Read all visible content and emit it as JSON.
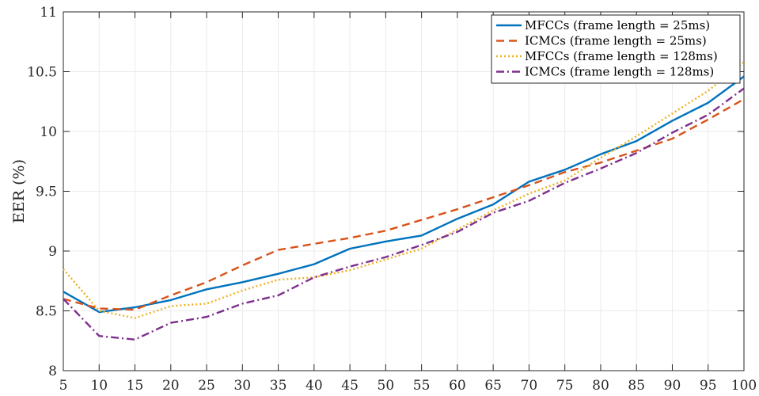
{
  "chart_data": {
    "type": "line",
    "title": "",
    "xlabel": "",
    "ylabel": "EER (%)",
    "x": [
      5,
      10,
      15,
      20,
      25,
      30,
      35,
      40,
      45,
      50,
      55,
      60,
      65,
      70,
      75,
      80,
      85,
      90,
      95,
      100
    ],
    "x_tick_labels": [
      "5",
      "10",
      "15",
      "20",
      "25",
      "30",
      "35",
      "40",
      "45",
      "50",
      "55",
      "60",
      "65",
      "70",
      "75",
      "80",
      "85",
      "90",
      "95",
      "100"
    ],
    "xlim": [
      5,
      100
    ],
    "ylim": [
      8,
      11
    ],
    "y_ticks": [
      8,
      8.5,
      9,
      9.5,
      10,
      10.5,
      11
    ],
    "y_tick_labels": [
      "8",
      "8.5",
      "9",
      "9.5",
      "10",
      "10.5",
      "11"
    ],
    "grid": true,
    "legend_position": "top-right",
    "series": [
      {
        "name": "MFCCs (frame length = 25ms)",
        "color": "#0072BD",
        "dash": "solid",
        "values": [
          8.66,
          8.49,
          8.53,
          8.59,
          8.68,
          8.74,
          8.81,
          8.89,
          9.02,
          9.08,
          9.13,
          9.27,
          9.39,
          9.58,
          9.68,
          9.81,
          9.92,
          10.09,
          10.24,
          10.46
        ]
      },
      {
        "name": "ICMCs (frame length = 25ms)",
        "color": "#D95319",
        "dash": "dashed",
        "values": [
          8.6,
          8.52,
          8.51,
          8.63,
          8.74,
          8.88,
          9.01,
          9.06,
          9.11,
          9.17,
          9.26,
          9.35,
          9.45,
          9.55,
          9.66,
          9.74,
          9.84,
          9.94,
          10.1,
          10.27
        ]
      },
      {
        "name": "MFCCs (frame length = 128ms)",
        "color": "#EDB120",
        "dash": "dotted",
        "values": [
          8.85,
          8.5,
          8.44,
          8.54,
          8.56,
          8.67,
          8.76,
          8.78,
          8.84,
          8.93,
          9.02,
          9.18,
          9.34,
          9.48,
          9.59,
          9.78,
          9.96,
          10.15,
          10.34,
          10.58
        ]
      },
      {
        "name": "ICMCs (frame length = 128ms)",
        "color": "#7E2F8E",
        "dash": "dashdot",
        "values": [
          8.6,
          8.29,
          8.26,
          8.4,
          8.45,
          8.56,
          8.63,
          8.78,
          8.87,
          8.95,
          9.05,
          9.16,
          9.32,
          9.42,
          9.57,
          9.69,
          9.82,
          9.99,
          10.14,
          10.36
        ]
      }
    ]
  }
}
